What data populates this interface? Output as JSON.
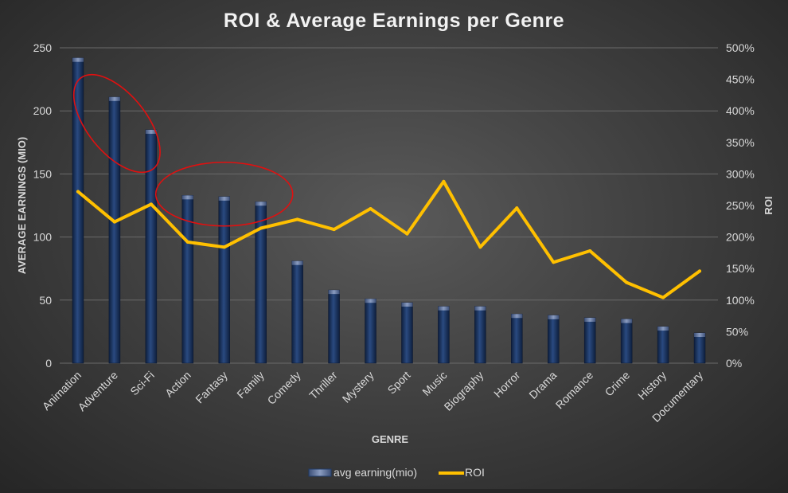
{
  "chart_data": {
    "type": "bar",
    "title": "ROI & Average Earnings per Genre",
    "xlabel": "GENRE",
    "ylabel": "AVERAGE EARNINGS (MIO)",
    "y2label": "ROI",
    "ylim": [
      0,
      250
    ],
    "y2lim": [
      0,
      5
    ],
    "y_ticks": [
      "0",
      "50",
      "100",
      "150",
      "200",
      "250"
    ],
    "y2_ticks": [
      "0%",
      "50%",
      "100%",
      "150%",
      "200%",
      "250%",
      "300%",
      "350%",
      "400%",
      "450%",
      "500%"
    ],
    "categories": [
      "Animation",
      "Adventure",
      "Sci-Fi",
      "Action",
      "Fantasy",
      "Family",
      "Comedy",
      "Thriller",
      "Mystery",
      "Sport",
      "Music",
      "Biography",
      "Horror",
      "Drama",
      "Romance",
      "Crime",
      "History",
      "Documentary"
    ],
    "series": [
      {
        "name": "avg earning(mio)",
        "type": "bar",
        "axis": "left",
        "values": [
          242,
          211,
          185,
          133,
          132,
          128,
          81,
          58,
          51,
          48,
          45,
          45,
          39,
          38,
          36,
          35,
          29,
          24
        ]
      },
      {
        "name": "ROI",
        "type": "line",
        "axis": "right",
        "unit": "fraction",
        "values": [
          2.72,
          2.24,
          2.52,
          1.92,
          1.84,
          2.14,
          2.28,
          2.12,
          2.45,
          2.05,
          2.88,
          1.84,
          2.46,
          1.6,
          1.78,
          1.28,
          1.04,
          1.46
        ]
      }
    ],
    "grid": true,
    "legend": "bottom",
    "colors": {
      "bar": "#1f3a66",
      "bar_light": "#5a6f94",
      "line": "#ffc000",
      "annotation": "#e01010",
      "grid": "#6a6a6a"
    },
    "annotations": [
      {
        "type": "ellipse",
        "around": [
          "Animation",
          "Adventure",
          "Sci-Fi"
        ],
        "color": "#e01010"
      },
      {
        "type": "ellipse",
        "around": [
          "Action",
          "Fantasy",
          "Family"
        ],
        "color": "#e01010"
      }
    ]
  }
}
